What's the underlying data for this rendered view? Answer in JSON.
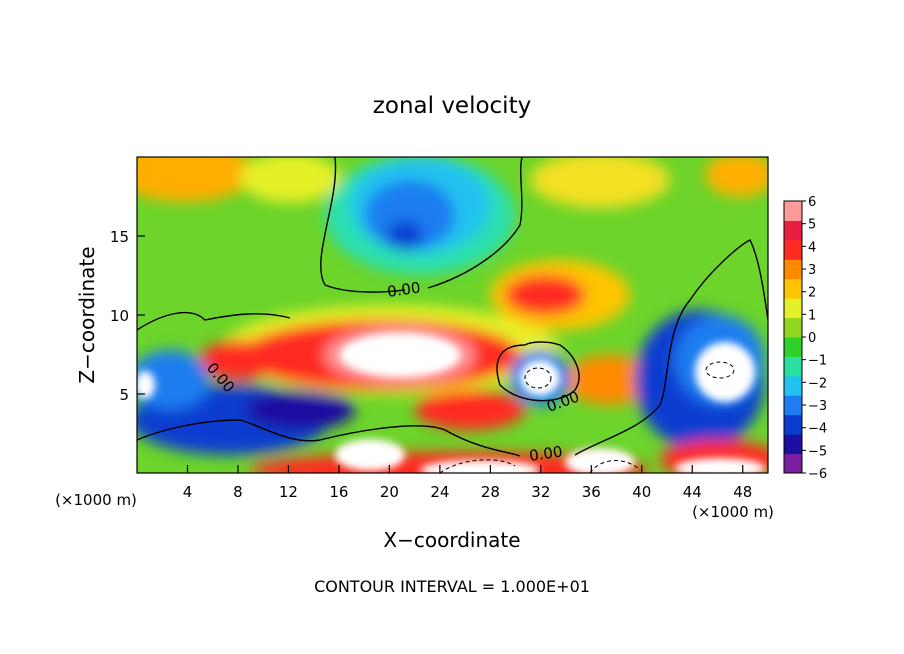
{
  "chart_data": {
    "type": "heatmap",
    "title": "zonal velocity",
    "xlabel": "X−coordinate",
    "ylabel": "Z−coordinate",
    "x_units_left": "(×1000 m)",
    "x_units_right": "(×1000 m)",
    "xlim": [
      0,
      50
    ],
    "ylim": [
      0,
      20
    ],
    "x_ticks": [
      4,
      8,
      12,
      16,
      20,
      24,
      28,
      32,
      36,
      40,
      44,
      48
    ],
    "x_tick_labels": [
      "4",
      "8",
      "12",
      "16",
      "20",
      "24",
      "28",
      "32",
      "36",
      "40",
      "44",
      "48"
    ],
    "y_ticks": [
      5,
      10,
      15
    ],
    "y_tick_labels": [
      "5",
      "10",
      "15"
    ],
    "colorbar": {
      "min": -6,
      "max": 6,
      "tick_values": [
        6,
        5,
        4,
        3,
        2,
        1,
        0,
        -1,
        -2,
        -3,
        -4,
        -5,
        -6
      ],
      "tick_labels": [
        "6",
        "5",
        "4",
        "3",
        "2",
        "1",
        "0",
        "−1",
        "−2",
        "−3",
        "−4",
        "−5",
        "−6"
      ],
      "colors": [
        "#7a1fa2",
        "#1a0fa0",
        "#0a3cd0",
        "#1e7df0",
        "#22c2f0",
        "#2ae0a0",
        "#2ed12a",
        "#8fd81e",
        "#e6f028",
        "#ffc400",
        "#ff8a00",
        "#ff2a20",
        "#e82040",
        "#ff9a9a"
      ]
    },
    "contour_labels": [
      "0.00",
      "0.00",
      "0.00",
      "0.00"
    ],
    "footer": "CONTOUR INTERVAL = 1.000E+01"
  }
}
